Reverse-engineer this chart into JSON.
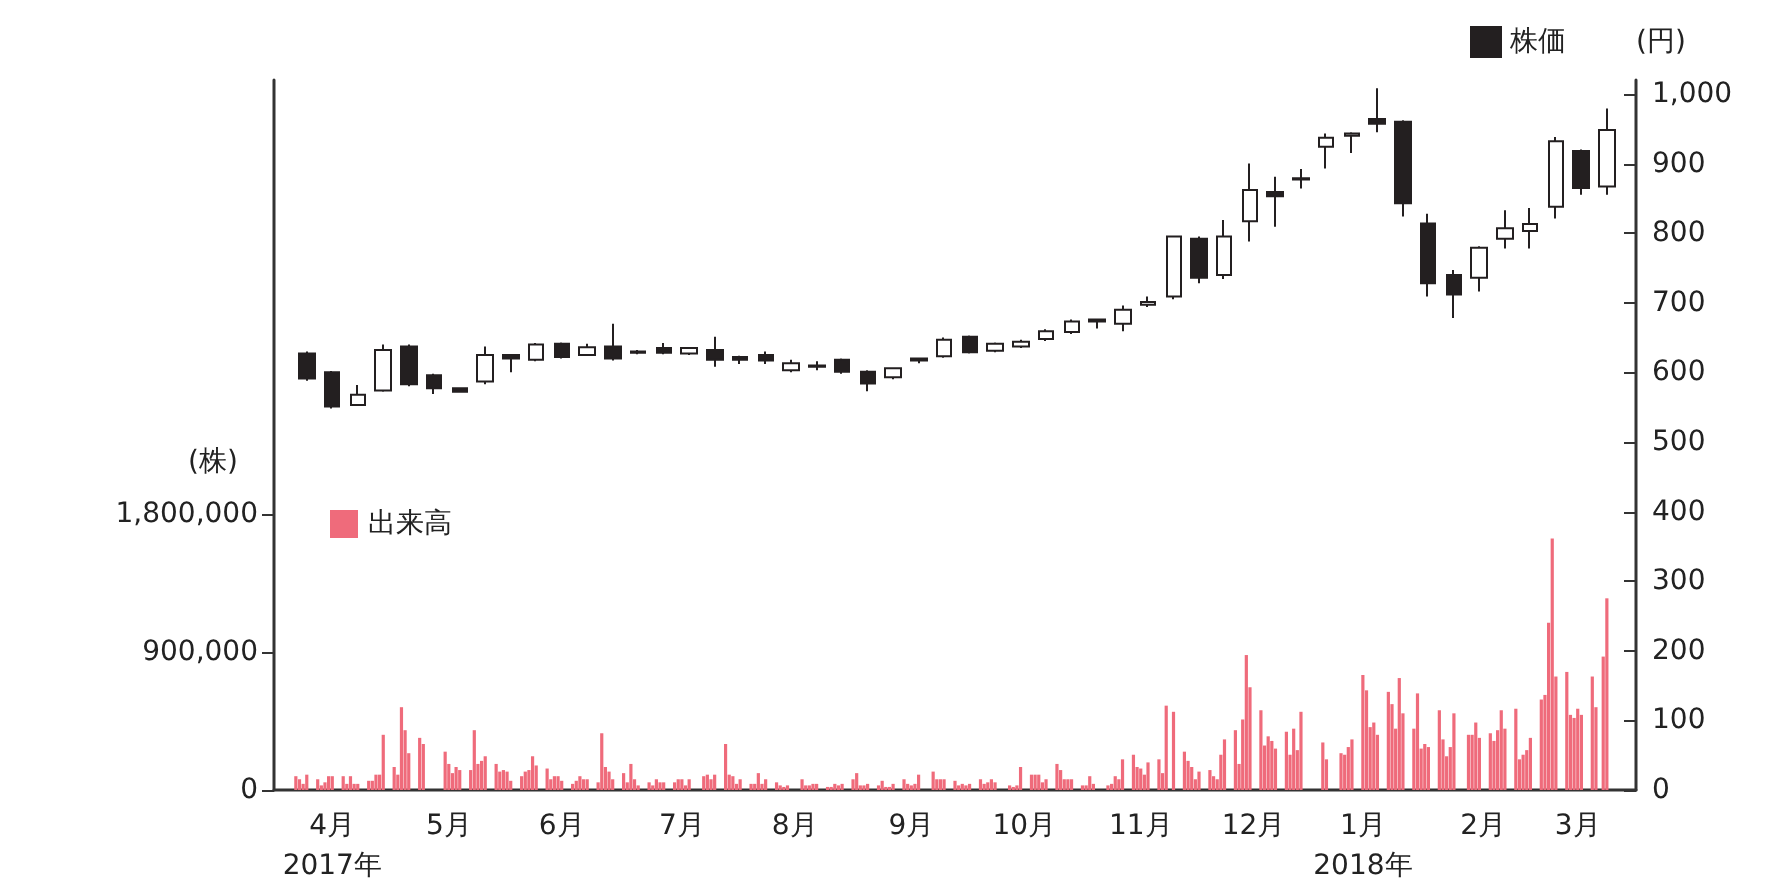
{
  "chart_data": {
    "type": "candlestick",
    "ylabel": "(株)",
    "y2label": "(円)",
    "legend": "top right",
    "grid": false,
    "xlim": [
      "2017-03-22",
      "2018-03-31"
    ],
    "xticks": [
      {
        "value": "2017-04-07",
        "label": "4月\n2017年"
      },
      {
        "value": "2017-05-09",
        "label": "5月"
      },
      {
        "value": "2017-06-09",
        "label": "6月"
      },
      {
        "value": "2017-07-12",
        "label": "7月"
      },
      {
        "value": "2017-08-12",
        "label": "8月"
      },
      {
        "value": "2017-09-13",
        "label": "9月"
      },
      {
        "value": "2017-10-14",
        "label": "10月"
      },
      {
        "value": "2017-11-15",
        "label": "11月"
      },
      {
        "value": "2017-12-16",
        "label": "12月"
      },
      {
        "value": "2018-01-15",
        "label": "1月\n2018年"
      },
      {
        "value": "2018-02-17",
        "label": "2月"
      },
      {
        "value": "2018-03-15",
        "label": "3月"
      }
    ],
    "ylim": [
      0,
      4630000
    ],
    "yticks": [
      0,
      {
        "value": 900000,
        "label": "900,000"
      },
      {
        "value": 1800000,
        "label": "1,800,000"
      }
    ],
    "y2lim": [
      0,
      1020
    ],
    "y2ticks": [
      0,
      100,
      200,
      300,
      400,
      500,
      600,
      700,
      800,
      900,
      {
        "value": 1000,
        "label": "1,000"
      }
    ],
    "series": [
      {
        "name": "株価",
        "color": "#231f20",
        "axis": "y2",
        "x": [
          "2017-03-31",
          "2017-04-07",
          "2017-04-14",
          "2017-04-21",
          "2017-04-28",
          "2017-05-05",
          "2017-05-12",
          "2017-05-19",
          "2017-05-26",
          "2017-06-02",
          "2017-06-09",
          "2017-06-16",
          "2017-06-23",
          "2017-06-30",
          "2017-07-07",
          "2017-07-14",
          "2017-07-21",
          "2017-07-28",
          "2017-08-04",
          "2017-08-11",
          "2017-08-18",
          "2017-08-25",
          "2017-09-01",
          "2017-09-08",
          "2017-09-15",
          "2017-09-22",
          "2017-09-29",
          "2017-10-06",
          "2017-10-13",
          "2017-10-20",
          "2017-10-27",
          "2017-11-03",
          "2017-11-10",
          "2017-11-17",
          "2017-11-24",
          "2017-12-01",
          "2017-12-08",
          "2017-12-15",
          "2017-12-22",
          "2017-12-29",
          "2018-01-05",
          "2018-01-12",
          "2018-01-19",
          "2018-01-26",
          "2018-02-02",
          "2018-02-09",
          "2018-02-16",
          "2018-02-23",
          "2018-03-02",
          "2018-03-09",
          "2018-03-16",
          "2018-03-23"
        ],
        "ohlc": [
          [
            627,
            630,
            588,
            591
          ],
          [
            600,
            602,
            548,
            551
          ],
          [
            553,
            582,
            553,
            568
          ],
          [
            574,
            640,
            572,
            632
          ],
          [
            637,
            640,
            580,
            583
          ],
          [
            596,
            598,
            569,
            577
          ],
          [
            577,
            578,
            571,
            572
          ],
          [
            587,
            637,
            583,
            625
          ],
          [
            625,
            626,
            600,
            620
          ],
          [
            618,
            642,
            616,
            640
          ],
          [
            641,
            643,
            620,
            622
          ],
          [
            625,
            641,
            624,
            636
          ],
          [
            637,
            670,
            617,
            620
          ],
          [
            630,
            632,
            626,
            628
          ],
          [
            635,
            642,
            626,
            628
          ],
          [
            627,
            636,
            625,
            635
          ],
          [
            632,
            651,
            608,
            618
          ],
          [
            622,
            624,
            612,
            618
          ],
          [
            625,
            630,
            612,
            617
          ],
          [
            603,
            618,
            600,
            613
          ],
          [
            610,
            616,
            603,
            608
          ],
          [
            618,
            620,
            598,
            601
          ],
          [
            601,
            603,
            573,
            584
          ],
          [
            593,
            607,
            590,
            606
          ],
          [
            620,
            621,
            613,
            617
          ],
          [
            623,
            650,
            621,
            647
          ],
          [
            651,
            653,
            627,
            629
          ],
          [
            631,
            643,
            629,
            641
          ],
          [
            637,
            647,
            635,
            644
          ],
          [
            648,
            662,
            645,
            659
          ],
          [
            658,
            676,
            655,
            673
          ],
          [
            676,
            677,
            663,
            673
          ],
          [
            670,
            696,
            659,
            690
          ],
          [
            697,
            709,
            694,
            701
          ],
          [
            709,
            796,
            705,
            795
          ],
          [
            792,
            795,
            728,
            736
          ],
          [
            740,
            819,
            734,
            795
          ],
          [
            817,
            900,
            788,
            862
          ],
          [
            859,
            881,
            809,
            853
          ],
          [
            877,
            892,
            864,
            879
          ],
          [
            924,
            943,
            893,
            937
          ],
          [
            940,
            945,
            915,
            943
          ],
          [
            964,
            1008,
            945,
            957
          ],
          [
            960,
            962,
            824,
            843
          ],
          [
            814,
            828,
            709,
            728
          ],
          [
            740,
            747,
            678,
            712
          ],
          [
            736,
            781,
            716,
            779
          ],
          [
            792,
            833,
            778,
            807
          ],
          [
            803,
            836,
            778,
            813
          ],
          [
            838,
            938,
            821,
            932
          ],
          [
            918,
            920,
            855,
            865
          ],
          [
            867,
            979,
            855,
            948
          ]
        ]
      },
      {
        "type": "bar",
        "name": "出来高",
        "color": "#ef6b7b",
        "x": [
          "2017-03-28",
          "2017-03-29",
          "2017-03-30",
          "2017-03-31",
          "2017-04-03",
          "2017-04-04",
          "2017-04-05",
          "2017-04-06",
          "2017-04-07",
          "2017-04-10",
          "2017-04-11",
          "2017-04-12",
          "2017-04-13",
          "2017-04-14",
          "2017-04-17",
          "2017-04-18",
          "2017-04-19",
          "2017-04-20",
          "2017-04-21",
          "2017-04-24",
          "2017-04-25",
          "2017-04-26",
          "2017-04-27",
          "2017-04-28",
          "2017-05-01",
          "2017-05-02",
          "2017-05-08",
          "2017-05-09",
          "2017-05-10",
          "2017-05-11",
          "2017-05-12",
          "2017-05-15",
          "2017-05-16",
          "2017-05-17",
          "2017-05-18",
          "2017-05-19",
          "2017-05-22",
          "2017-05-23",
          "2017-05-24",
          "2017-05-25",
          "2017-05-26",
          "2017-05-29",
          "2017-05-30",
          "2017-05-31",
          "2017-06-01",
          "2017-06-02",
          "2017-06-05",
          "2017-06-06",
          "2017-06-07",
          "2017-06-08",
          "2017-06-09",
          "2017-06-12",
          "2017-06-13",
          "2017-06-14",
          "2017-06-15",
          "2017-06-16",
          "2017-06-19",
          "2017-06-20",
          "2017-06-21",
          "2017-06-22",
          "2017-06-23",
          "2017-06-26",
          "2017-06-27",
          "2017-06-28",
          "2017-06-29",
          "2017-06-30",
          "2017-07-03",
          "2017-07-04",
          "2017-07-05",
          "2017-07-06",
          "2017-07-07",
          "2017-07-10",
          "2017-07-11",
          "2017-07-12",
          "2017-07-13",
          "2017-07-14",
          "2017-07-18",
          "2017-07-19",
          "2017-07-20",
          "2017-07-21",
          "2017-07-24",
          "2017-07-25",
          "2017-07-26",
          "2017-07-27",
          "2017-07-28",
          "2017-07-31",
          "2017-08-01",
          "2017-08-02",
          "2017-08-03",
          "2017-08-04",
          "2017-08-07",
          "2017-08-08",
          "2017-08-09",
          "2017-08-10",
          "2017-08-14",
          "2017-08-15",
          "2017-08-16",
          "2017-08-17",
          "2017-08-18",
          "2017-08-21",
          "2017-08-22",
          "2017-08-23",
          "2017-08-24",
          "2017-08-25",
          "2017-08-28",
          "2017-08-29",
          "2017-08-30",
          "2017-08-31",
          "2017-09-01",
          "2017-09-04",
          "2017-09-05",
          "2017-09-06",
          "2017-09-07",
          "2017-09-08",
          "2017-09-11",
          "2017-09-12",
          "2017-09-13",
          "2017-09-14",
          "2017-09-15",
          "2017-09-19",
          "2017-09-20",
          "2017-09-21",
          "2017-09-22",
          "2017-09-25",
          "2017-09-26",
          "2017-09-27",
          "2017-09-28",
          "2017-09-29",
          "2017-10-02",
          "2017-10-03",
          "2017-10-04",
          "2017-10-05",
          "2017-10-06",
          "2017-10-10",
          "2017-10-11",
          "2017-10-12",
          "2017-10-13",
          "2017-10-16",
          "2017-10-17",
          "2017-10-18",
          "2017-10-19",
          "2017-10-20",
          "2017-10-23",
          "2017-10-24",
          "2017-10-25",
          "2017-10-26",
          "2017-10-27",
          "2017-10-30",
          "2017-10-31",
          "2017-11-01",
          "2017-11-02",
          "2017-11-06",
          "2017-11-07",
          "2017-11-08",
          "2017-11-09",
          "2017-11-10",
          "2017-11-13",
          "2017-11-14",
          "2017-11-15",
          "2017-11-16",
          "2017-11-17",
          "2017-11-20",
          "2017-11-21",
          "2017-11-22",
          "2017-11-24",
          "2017-11-27",
          "2017-11-28",
          "2017-11-29",
          "2017-11-30",
          "2017-12-01",
          "2017-12-04",
          "2017-12-05",
          "2017-12-06",
          "2017-12-07",
          "2017-12-08",
          "2017-12-11",
          "2017-12-12",
          "2017-12-13",
          "2017-12-14",
          "2017-12-15",
          "2017-12-18",
          "2017-12-19",
          "2017-12-20",
          "2017-12-21",
          "2017-12-22",
          "2017-12-25",
          "2017-12-26",
          "2017-12-27",
          "2017-12-28",
          "2017-12-29",
          "2018-01-04",
          "2018-01-05",
          "2018-01-09",
          "2018-01-10",
          "2018-01-11",
          "2018-01-12",
          "2018-01-15",
          "2018-01-16",
          "2018-01-17",
          "2018-01-18",
          "2018-01-19",
          "2018-01-22",
          "2018-01-23",
          "2018-01-24",
          "2018-01-25",
          "2018-01-26",
          "2018-01-29",
          "2018-01-30",
          "2018-01-31",
          "2018-02-01",
          "2018-02-02",
          "2018-02-05",
          "2018-02-06",
          "2018-02-07",
          "2018-02-08",
          "2018-02-09",
          "2018-02-13",
          "2018-02-14",
          "2018-02-15",
          "2018-02-16",
          "2018-02-19",
          "2018-02-20",
          "2018-02-21",
          "2018-02-22",
          "2018-02-23",
          "2018-02-26",
          "2018-02-27",
          "2018-02-28",
          "2018-03-01",
          "2018-03-02",
          "2018-03-05",
          "2018-03-06",
          "2018-03-07",
          "2018-03-08",
          "2018-03-09",
          "2018-03-12",
          "2018-03-13",
          "2018-03-14",
          "2018-03-15",
          "2018-03-16",
          "2018-03-19",
          "2018-03-20",
          "2018-03-22",
          "2018-03-23"
        ],
        "values": [
          90000,
          70000,
          40000,
          100000,
          70000,
          30000,
          50000,
          90000,
          90000,
          90000,
          40000,
          90000,
          40000,
          40000,
          60000,
          60000,
          100000,
          100000,
          360000,
          150000,
          100000,
          540000,
          390000,
          240000,
          340000,
          300000,
          250000,
          170000,
          110000,
          150000,
          130000,
          130000,
          390000,
          170000,
          190000,
          220000,
          170000,
          120000,
          130000,
          120000,
          60000,
          90000,
          120000,
          130000,
          220000,
          160000,
          140000,
          70000,
          90000,
          90000,
          60000,
          40000,
          60000,
          90000,
          70000,
          70000,
          50000,
          370000,
          150000,
          120000,
          70000,
          110000,
          50000,
          170000,
          70000,
          30000,
          50000,
          30000,
          70000,
          50000,
          50000,
          50000,
          70000,
          70000,
          30000,
          70000,
          90000,
          100000,
          70000,
          100000,
          300000,
          100000,
          90000,
          40000,
          70000,
          40000,
          40000,
          110000,
          40000,
          70000,
          50000,
          30000,
          20000,
          30000,
          70000,
          30000,
          30000,
          40000,
          40000,
          20000,
          20000,
          40000,
          30000,
          40000,
          70000,
          110000,
          30000,
          30000,
          40000,
          30000,
          60000,
          20000,
          20000,
          40000,
          70000,
          40000,
          30000,
          40000,
          100000,
          120000,
          70000,
          70000,
          70000,
          60000,
          30000,
          40000,
          30000,
          40000,
          70000,
          40000,
          50000,
          70000,
          50000,
          30000,
          20000,
          30000,
          150000,
          100000,
          100000,
          100000,
          50000,
          70000,
          170000,
          130000,
          70000,
          70000,
          70000,
          30000,
          30000,
          90000,
          40000,
          30000,
          40000,
          90000,
          70000,
          200000,
          230000,
          150000,
          140000,
          100000,
          180000,
          200000,
          110000,
          550000,
          510000,
          250000,
          190000,
          150000,
          70000,
          120000,
          130000,
          90000,
          70000,
          230000,
          330000,
          390000,
          170000,
          460000,
          880000,
          670000,
          520000,
          290000,
          350000,
          320000,
          270000,
          380000,
          230000,
          400000,
          260000,
          510000,
          310000,
          200000,
          240000,
          230000,
          280000,
          330000,
          750000,
          650000,
          410000,
          440000,
          360000,
          640000,
          560000,
          400000,
          730000,
          500000,
          400000,
          630000,
          270000,
          300000,
          280000,
          520000,
          330000,
          220000,
          280000,
          500000,
          360000,
          360000,
          440000,
          340000,
          370000,
          320000,
          390000,
          520000,
          400000,
          530000,
          200000,
          230000,
          260000,
          340000,
          590000,
          620000,
          1090000,
          1640000,
          740000,
          770000,
          490000,
          470000,
          530000,
          490000,
          740000,
          540000,
          870000,
          1250000
        ]
      }
    ]
  }
}
